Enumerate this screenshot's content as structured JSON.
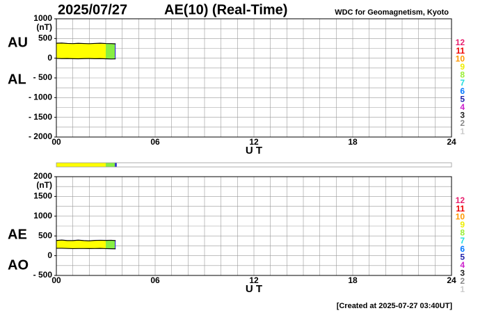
{
  "header": {
    "date": "2025/07/27",
    "title": "AE(10) (Real-Time)",
    "source": "WDC for Geomagnetism, Kyoto"
  },
  "footer": "[Created at 2025-07-27 03:40UT]",
  "station_legend": [
    {
      "label": "12",
      "color": "#e8206e"
    },
    {
      "label": "11",
      "color": "#ee0000"
    },
    {
      "label": "10",
      "color": "#ff9900"
    },
    {
      "label": "9",
      "color": "#eeee00"
    },
    {
      "label": "8",
      "color": "#99ee33"
    },
    {
      "label": "7",
      "color": "#22dddd"
    },
    {
      "label": "6",
      "color": "#0077ff"
    },
    {
      "label": "5",
      "color": "#2222aa"
    },
    {
      "label": "4",
      "color": "#cc22cc"
    },
    {
      "label": "3",
      "color": "#222222"
    },
    {
      "label": "2",
      "color": "#888888"
    },
    {
      "label": "1",
      "color": "#cccccc"
    }
  ],
  "coverage": [
    {
      "start": 0,
      "end": 3.0,
      "color": "#ffff00"
    },
    {
      "start": 3.0,
      "end": 3.55,
      "color": "#88ee44"
    },
    {
      "start": 3.55,
      "end": 3.67,
      "color": "#3333cc"
    }
  ],
  "chart_data": [
    {
      "type": "line",
      "ylabel": "(nT)",
      "xlabel": "U T",
      "x": [
        0,
        0.33,
        0.67,
        1,
        1.33,
        1.67,
        2,
        2.33,
        2.67,
        3,
        3.33,
        3.6
      ],
      "series": [
        {
          "name": "AU",
          "color": "#000000",
          "values": [
            380,
            385,
            375,
            370,
            378,
            372,
            368,
            375,
            380,
            372,
            370,
            365
          ]
        },
        {
          "name": "AL",
          "color": "#000000",
          "values": [
            -5,
            -10,
            -8,
            -12,
            -15,
            -10,
            -8,
            -12,
            -10,
            -15,
            -20,
            -18
          ]
        }
      ],
      "xlim": [
        0,
        24
      ],
      "xticks": [
        {
          "value": 0,
          "label": "00"
        },
        {
          "value": 6,
          "label": "06"
        },
        12,
        18,
        24
      ],
      "minor_xticks": [
        0,
        1,
        2,
        3,
        4,
        5,
        6,
        7,
        8,
        9,
        10,
        11,
        12,
        13,
        14,
        15,
        16,
        17,
        18,
        19,
        20,
        21,
        22,
        23,
        24
      ],
      "ylim": [
        -2000,
        1000
      ],
      "yticks": [
        {
          "value": -2000,
          "label": "- 2000"
        },
        {
          "value": -1500,
          "label": "- 1500"
        },
        {
          "value": -1000,
          "label": "- 1000"
        },
        {
          "value": -500,
          "label": "- 500"
        },
        0,
        500,
        1000
      ],
      "minor_yticks": [
        -2000,
        -1750,
        -1500,
        -1250,
        -1000,
        -750,
        -500,
        -250,
        0,
        250,
        500,
        750,
        1000
      ],
      "grid": true
    },
    {
      "type": "line",
      "ylabel": "(nT)",
      "xlabel": "U T",
      "x": [
        0,
        0.33,
        0.67,
        1,
        1.33,
        1.67,
        2,
        2.33,
        2.67,
        3,
        3.33,
        3.6
      ],
      "series": [
        {
          "name": "AE",
          "color": "#000000",
          "values": [
            385,
            395,
            383,
            382,
            393,
            382,
            376,
            387,
            390,
            387,
            390,
            383
          ]
        },
        {
          "name": "AO",
          "color": "#000000",
          "values": [
            187.5,
            187.5,
            183.5,
            179,
            181.5,
            181,
            180,
            181.5,
            185,
            178.5,
            175,
            173.5
          ]
        }
      ],
      "xlim": [
        0,
        24
      ],
      "xticks": [
        {
          "value": 0,
          "label": "00"
        },
        {
          "value": 6,
          "label": "06"
        },
        12,
        18,
        24
      ],
      "minor_xticks": [
        0,
        1,
        2,
        3,
        4,
        5,
        6,
        7,
        8,
        9,
        10,
        11,
        12,
        13,
        14,
        15,
        16,
        17,
        18,
        19,
        20,
        21,
        22,
        23,
        24
      ],
      "ylim": [
        -500,
        2000
      ],
      "yticks": [
        {
          "value": -500,
          "label": "- 500"
        },
        0,
        500,
        1000,
        1500,
        2000
      ],
      "minor_yticks": [
        -500,
        -250,
        0,
        250,
        500,
        750,
        1000,
        1250,
        1500,
        1750,
        2000
      ],
      "grid": true
    }
  ]
}
